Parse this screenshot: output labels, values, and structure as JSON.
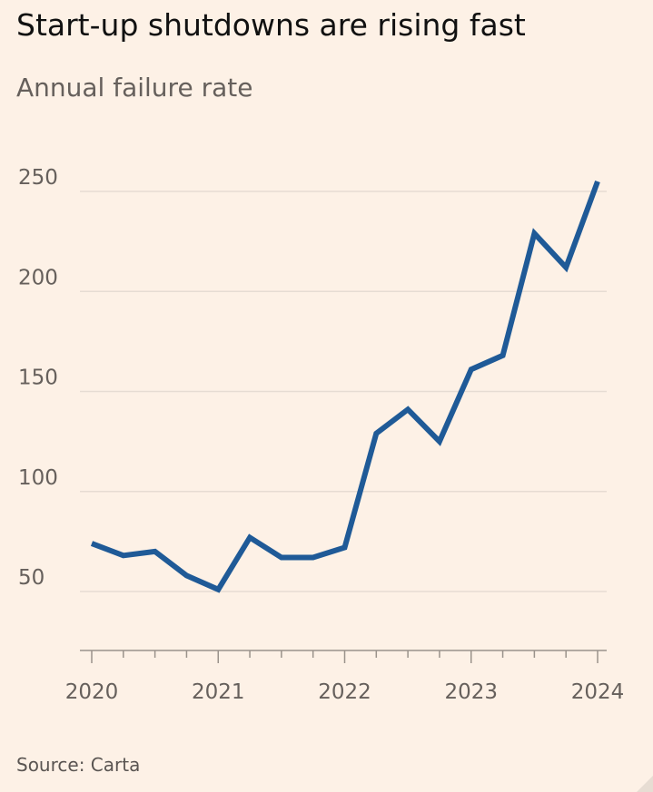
{
  "chart_data": {
    "type": "line",
    "title": "Start-up shutdowns are rising fast",
    "subtitle": "Annual failure rate",
    "source": "Source: Carta",
    "xlabel": "",
    "ylabel": "",
    "x": [
      2020.0,
      2020.25,
      2020.5,
      2020.75,
      2021.0,
      2021.25,
      2021.5,
      2021.75,
      2022.0,
      2022.25,
      2022.5,
      2022.75,
      2023.0,
      2023.25,
      2023.5,
      2023.75,
      2024.0
    ],
    "series": [
      {
        "name": "Annual failure rate",
        "color": "#1f5a97",
        "values": [
          74,
          68,
          70,
          58,
          51,
          77,
          67,
          67,
          72,
          129,
          141,
          125,
          161,
          168,
          229,
          212,
          255
        ]
      }
    ],
    "xlim": [
      2020,
      2024
    ],
    "ylim": [
      30,
      260
    ],
    "x_ticks": [
      "2020",
      "2021",
      "2022",
      "2023",
      "2024"
    ],
    "y_ticks": [
      "50",
      "100",
      "150",
      "200",
      "250"
    ],
    "grid": true,
    "colors": {
      "background": "#fdf1e6",
      "gridline": "#e6dcd3",
      "axis": "#9a928b",
      "tick_label": "#66605c",
      "line": "#1f5a97"
    }
  }
}
